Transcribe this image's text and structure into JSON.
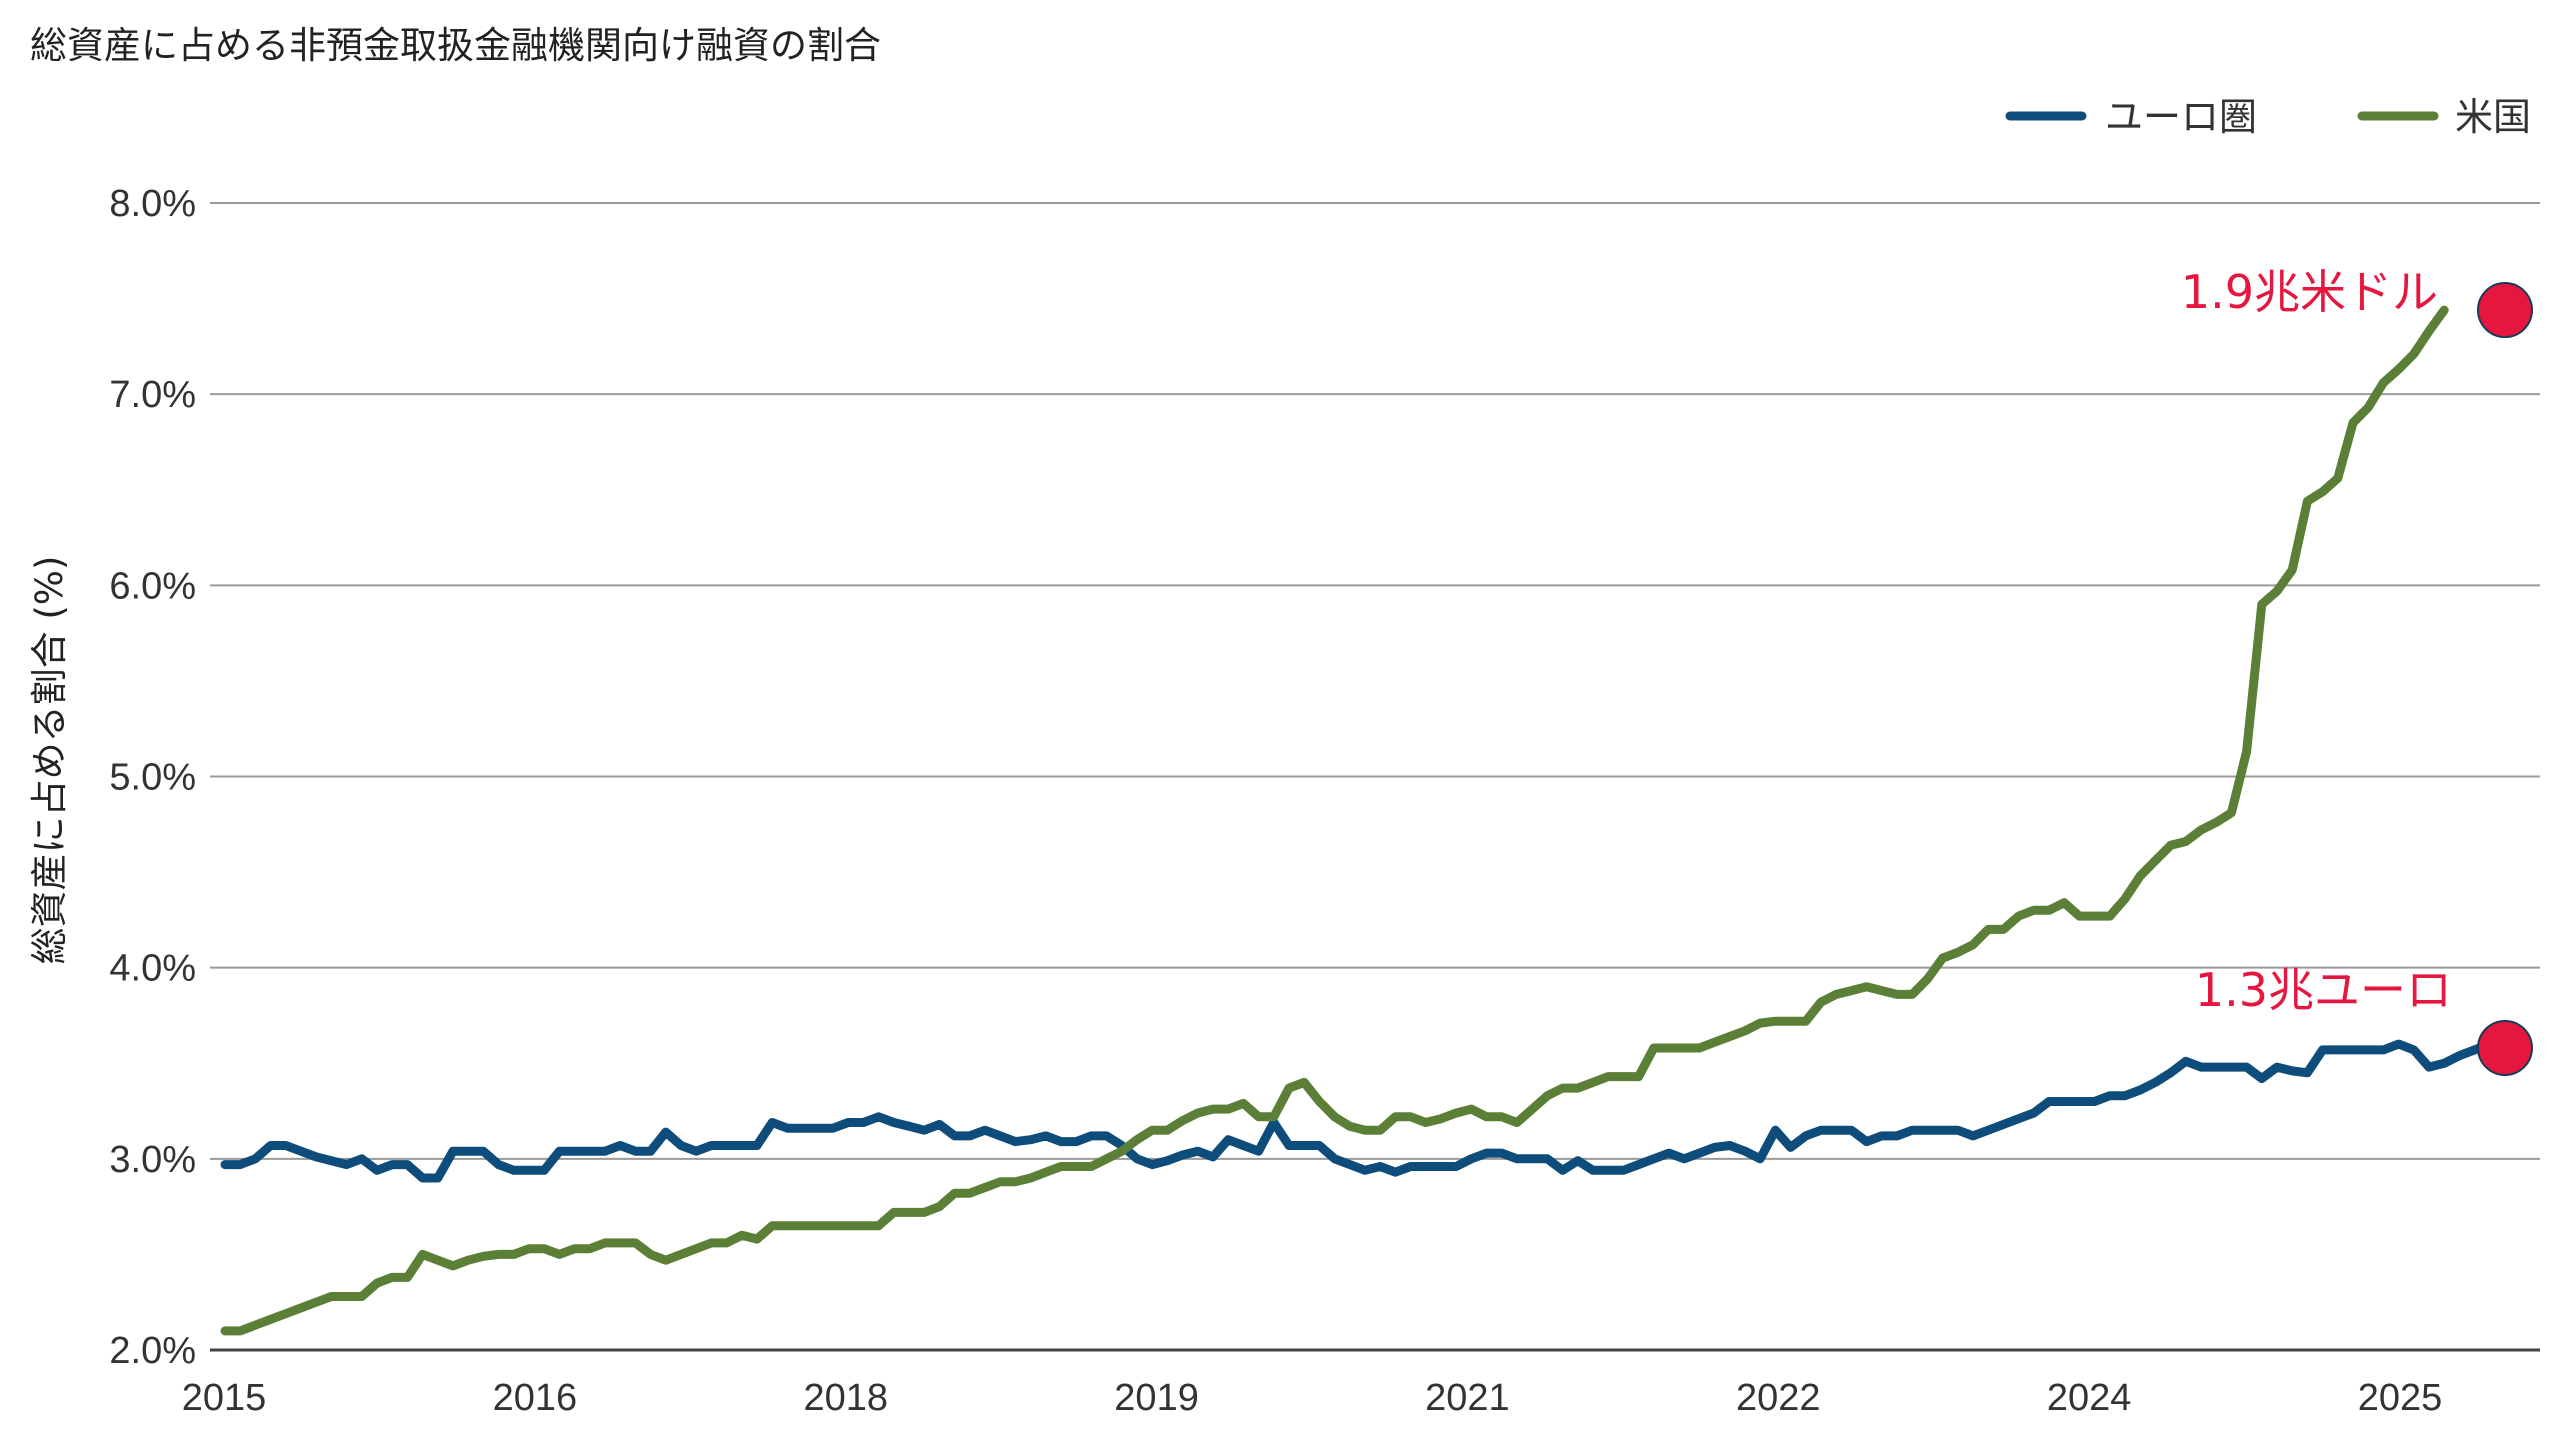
{
  "chart_data": {
    "type": "line",
    "title": "総資産に占める非預金取扱金融機関向け融資の割合",
    "ylabel": "総資産に占める割合 (%)",
    "xlabel": "",
    "ylim": [
      2.0,
      8.0
    ],
    "y_ticks": [
      "8.0%",
      "7.0%",
      "6.0%",
      "5.0%",
      "4.0%",
      "3.0%",
      "2.0%"
    ],
    "x_tick_labels": [
      "2015",
      "2016",
      "2018",
      "2019",
      "2021",
      "2022",
      "2024",
      "2025"
    ],
    "grid": "horizontal",
    "legend_position": "top-right",
    "series": [
      {
        "name": "ユーロ圏",
        "color": "#0e4d7b",
        "values": [
          2.97,
          2.97,
          3.0,
          3.07,
          3.07,
          3.04,
          3.01,
          2.99,
          2.97,
          3.0,
          2.94,
          2.97,
          2.97,
          2.9,
          2.9,
          3.04,
          3.04,
          3.04,
          2.97,
          2.94,
          2.94,
          2.94,
          3.04,
          3.04,
          3.04,
          3.04,
          3.07,
          3.04,
          3.04,
          3.14,
          3.07,
          3.04,
          3.07,
          3.07,
          3.07,
          3.07,
          3.19,
          3.16,
          3.16,
          3.16,
          3.16,
          3.19,
          3.19,
          3.22,
          3.19,
          3.17,
          3.15,
          3.18,
          3.12,
          3.12,
          3.15,
          3.12,
          3.09,
          3.1,
          3.12,
          3.09,
          3.09,
          3.12,
          3.12,
          3.07,
          3.0,
          2.97,
          2.99,
          3.02,
          3.04,
          3.01,
          3.1,
          3.07,
          3.04,
          3.19,
          3.07,
          3.07,
          3.07,
          3.0,
          2.97,
          2.94,
          2.96,
          2.93,
          2.96,
          2.96,
          2.96,
          2.96,
          3.0,
          3.03,
          3.03,
          3.0,
          3.0,
          3.0,
          2.94,
          2.99,
          2.94,
          2.94,
          2.94,
          2.97,
          3.0,
          3.03,
          3.0,
          3.03,
          3.06,
          3.07,
          3.04,
          3.0,
          3.15,
          3.06,
          3.12,
          3.15,
          3.15,
          3.15,
          3.09,
          3.12,
          3.12,
          3.15,
          3.15,
          3.15,
          3.15,
          3.12,
          3.15,
          3.18,
          3.21,
          3.24,
          3.3,
          3.3,
          3.3,
          3.3,
          3.33,
          3.33,
          3.36,
          3.4,
          3.45,
          3.51,
          3.48,
          3.48,
          3.48,
          3.48,
          3.42,
          3.48,
          3.46,
          3.45,
          3.57,
          3.57,
          3.57,
          3.57,
          3.57,
          3.6,
          3.57,
          3.48,
          3.5,
          3.54,
          3.57,
          3.6,
          3.58
        ]
      },
      {
        "name": "米国",
        "color": "#5b7f36",
        "values": [
          2.1,
          2.1,
          2.13,
          2.16,
          2.19,
          2.22,
          2.25,
          2.28,
          2.28,
          2.28,
          2.35,
          2.38,
          2.38,
          2.5,
          2.47,
          2.44,
          2.47,
          2.49,
          2.5,
          2.5,
          2.53,
          2.53,
          2.5,
          2.53,
          2.53,
          2.56,
          2.56,
          2.56,
          2.5,
          2.47,
          2.5,
          2.53,
          2.56,
          2.56,
          2.6,
          2.58,
          2.65,
          2.65,
          2.65,
          2.65,
          2.65,
          2.65,
          2.65,
          2.65,
          2.72,
          2.72,
          2.72,
          2.75,
          2.82,
          2.82,
          2.85,
          2.88,
          2.88,
          2.9,
          2.93,
          2.96,
          2.96,
          2.96,
          3.0,
          3.04,
          3.1,
          3.15,
          3.15,
          3.2,
          3.24,
          3.26,
          3.26,
          3.29,
          3.22,
          3.22,
          3.37,
          3.4,
          3.3,
          3.22,
          3.17,
          3.15,
          3.15,
          3.22,
          3.22,
          3.19,
          3.21,
          3.24,
          3.26,
          3.22,
          3.22,
          3.19,
          3.26,
          3.33,
          3.37,
          3.37,
          3.4,
          3.43,
          3.43,
          3.43,
          3.58,
          3.58,
          3.58,
          3.58,
          3.61,
          3.64,
          3.67,
          3.71,
          3.72,
          3.72,
          3.72,
          3.82,
          3.86,
          3.88,
          3.9,
          3.88,
          3.86,
          3.86,
          3.94,
          4.05,
          4.08,
          4.12,
          4.2,
          4.2,
          4.27,
          4.3,
          4.3,
          4.34,
          4.27,
          4.27,
          4.27,
          4.36,
          4.48,
          4.56,
          4.64,
          4.66,
          4.72,
          4.76,
          4.81,
          5.13,
          5.9,
          5.97,
          6.08,
          6.44,
          6.49,
          6.56,
          6.85,
          6.93,
          7.06,
          7.13,
          7.21,
          7.33,
          7.44
        ]
      }
    ],
    "annotations": [
      {
        "text": "1.9兆米ドル",
        "series": "米国",
        "value": 7.44,
        "color": "#e5173f"
      },
      {
        "text": "1.3兆ユーロ",
        "series": "ユーロ圏",
        "value": 3.58,
        "color": "#e5173f"
      }
    ]
  }
}
